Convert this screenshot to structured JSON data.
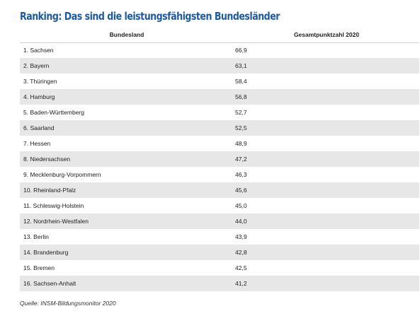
{
  "title": "Ranking: Das sind die leistungsfähigsten Bundesländer",
  "chart_data": {
    "type": "table",
    "title": "Ranking: Das sind die leistungsfähigsten Bundesländer",
    "columns": [
      "Bundesland",
      "Gesamtpunktzahl 2020"
    ],
    "rows": [
      {
        "name": "1. Sachsen",
        "value": "66,9"
      },
      {
        "name": "2. Bayern",
        "value": "63,1"
      },
      {
        "name": "3. Thüringen",
        "value": "58,4"
      },
      {
        "name": "4. Hamburg",
        "value": "56,8"
      },
      {
        "name": "5. Baden-Württemberg",
        "value": "52,7"
      },
      {
        "name": "6. Saarland",
        "value": "52,5"
      },
      {
        "name": "7. Hessen",
        "value": "48,9"
      },
      {
        "name": "8. Niedersachsen",
        "value": "47,2"
      },
      {
        "name": "9. Mecklenburg-Vorpommern",
        "value": "46,3"
      },
      {
        "name": "10. Rheinland-Pfalz",
        "value": "45,6"
      },
      {
        "name": "11. Schleswig-Holstein",
        "value": "45,0"
      },
      {
        "name": "12. Nordrhein-Westfalen",
        "value": "44,0"
      },
      {
        "name": "13. Berlin",
        "value": "43,9"
      },
      {
        "name": "14. Brandenburg",
        "value": "42,8"
      },
      {
        "name": "15. Bremen",
        "value": "42,5"
      },
      {
        "name": "16. Sachsen-Anhalt",
        "value": "41,2"
      }
    ]
  },
  "source": "Quelle: INSM-Bildungsmonitor 2020",
  "colors": {
    "title": "#1d5aa0",
    "row_shade": "#e7e7e7",
    "text": "#222222"
  }
}
